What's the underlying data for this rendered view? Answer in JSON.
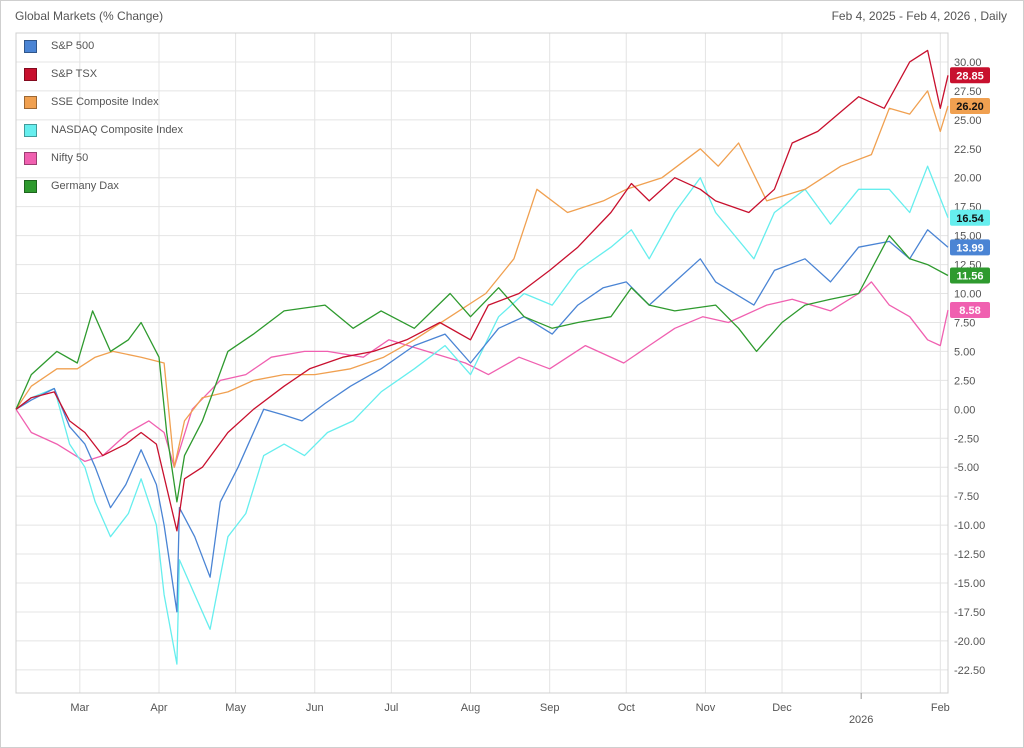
{
  "header": {
    "title": "Global Markets (% Change)",
    "date_range": "Feb 4, 2025 - Feb 4, 2026 , Daily"
  },
  "chart_data": {
    "type": "line",
    "title": "Global Markets (% Change)",
    "x_start": "2025-02-04",
    "x_end": "2026-02-04",
    "x_tick_labels": [
      {
        "label": "Mar",
        "date": "2025-03-01"
      },
      {
        "label": "Apr",
        "date": "2025-04-01"
      },
      {
        "label": "May",
        "date": "2025-05-01"
      },
      {
        "label": "Jun",
        "date": "2025-06-01"
      },
      {
        "label": "Jul",
        "date": "2025-07-01"
      },
      {
        "label": "Aug",
        "date": "2025-08-01"
      },
      {
        "label": "Sep",
        "date": "2025-09-01"
      },
      {
        "label": "Oct",
        "date": "2025-10-01"
      },
      {
        "label": "Nov",
        "date": "2025-11-01"
      },
      {
        "label": "Dec",
        "date": "2025-12-01"
      },
      {
        "label": "2026",
        "date": "2026-01-01"
      },
      {
        "label": "Feb",
        "date": "2026-02-01"
      }
    ],
    "y_ticks": [
      "30.00",
      "27.50",
      "25.00",
      "22.50",
      "20.00",
      "17.50",
      "15.00",
      "12.50",
      "10.00",
      "7.50",
      "5.00",
      "2.50",
      "0.00",
      "-2.50",
      "-5.00",
      "-7.50",
      "-10.00",
      "-12.50",
      "-15.00",
      "-17.50",
      "-20.00",
      "-22.50"
    ],
    "ylim": [
      -24.5,
      32.5
    ],
    "grid": true,
    "legend_position": "top-left",
    "series": [
      {
        "name": "S&P 500",
        "color": "#4a84d4",
        "last_label": "13.99",
        "points": [
          [
            "2025-02-04",
            0
          ],
          [
            "2025-02-10",
            0.8
          ],
          [
            "2025-02-19",
            1.8
          ],
          [
            "2025-02-25",
            -1.5
          ],
          [
            "2025-03-03",
            -3
          ],
          [
            "2025-03-07",
            -5
          ],
          [
            "2025-03-13",
            -8.5
          ],
          [
            "2025-03-19",
            -6.5
          ],
          [
            "2025-03-25",
            -3.5
          ],
          [
            "2025-03-31",
            -6.5
          ],
          [
            "2025-04-03",
            -10
          ],
          [
            "2025-04-08",
            -17.5
          ],
          [
            "2025-04-09",
            -8.5
          ],
          [
            "2025-04-15",
            -11
          ],
          [
            "2025-04-21",
            -14.5
          ],
          [
            "2025-04-25",
            -8
          ],
          [
            "2025-05-02",
            -5
          ],
          [
            "2025-05-12",
            0
          ],
          [
            "2025-05-20",
            -0.5
          ],
          [
            "2025-05-27",
            -1
          ],
          [
            "2025-06-05",
            0.5
          ],
          [
            "2025-06-15",
            2
          ],
          [
            "2025-06-27",
            3.5
          ],
          [
            "2025-07-10",
            5.5
          ],
          [
            "2025-07-22",
            6.5
          ],
          [
            "2025-08-01",
            4
          ],
          [
            "2025-08-12",
            7
          ],
          [
            "2025-08-22",
            8
          ],
          [
            "2025-09-02",
            6.5
          ],
          [
            "2025-09-12",
            9
          ],
          [
            "2025-09-22",
            10.5
          ],
          [
            "2025-10-01",
            11
          ],
          [
            "2025-10-10",
            9
          ],
          [
            "2025-10-20",
            11
          ],
          [
            "2025-10-30",
            13
          ],
          [
            "2025-11-05",
            11
          ],
          [
            "2025-11-20",
            9
          ],
          [
            "2025-11-28",
            12
          ],
          [
            "2025-12-10",
            13
          ],
          [
            "2025-12-20",
            11
          ],
          [
            "2025-12-31",
            14
          ],
          [
            "2026-01-12",
            14.5
          ],
          [
            "2026-01-20",
            13
          ],
          [
            "2026-01-27",
            15.5
          ],
          [
            "2026-02-04",
            13.99
          ]
        ]
      },
      {
        "name": "S&P TSX",
        "color": "#c8102e",
        "last_label": "28.85",
        "points": [
          [
            "2025-02-04",
            0
          ],
          [
            "2025-02-10",
            1
          ],
          [
            "2025-02-19",
            1.5
          ],
          [
            "2025-02-25",
            -1
          ],
          [
            "2025-03-03",
            -2
          ],
          [
            "2025-03-10",
            -4
          ],
          [
            "2025-03-19",
            -3
          ],
          [
            "2025-03-25",
            -2
          ],
          [
            "2025-03-31",
            -3
          ],
          [
            "2025-04-08",
            -10.5
          ],
          [
            "2025-04-11",
            -6
          ],
          [
            "2025-04-18",
            -5
          ],
          [
            "2025-04-28",
            -2
          ],
          [
            "2025-05-08",
            0
          ],
          [
            "2025-05-20",
            2
          ],
          [
            "2025-05-30",
            3.5
          ],
          [
            "2025-06-12",
            4.5
          ],
          [
            "2025-06-24",
            5
          ],
          [
            "2025-07-07",
            6
          ],
          [
            "2025-07-20",
            7.5
          ],
          [
            "2025-08-01",
            6
          ],
          [
            "2025-08-08",
            9
          ],
          [
            "2025-08-20",
            10
          ],
          [
            "2025-09-01",
            12
          ],
          [
            "2025-09-12",
            14
          ],
          [
            "2025-09-25",
            17
          ],
          [
            "2025-10-03",
            19.5
          ],
          [
            "2025-10-10",
            18
          ],
          [
            "2025-10-20",
            20
          ],
          [
            "2025-10-30",
            19
          ],
          [
            "2025-11-05",
            18
          ],
          [
            "2025-11-18",
            17
          ],
          [
            "2025-11-28",
            19
          ],
          [
            "2025-12-05",
            23
          ],
          [
            "2025-12-15",
            24
          ],
          [
            "2025-12-31",
            27
          ],
          [
            "2026-01-10",
            26
          ],
          [
            "2026-01-20",
            30
          ],
          [
            "2026-01-27",
            31
          ],
          [
            "2026-02-01",
            26
          ],
          [
            "2026-02-04",
            28.85
          ]
        ]
      },
      {
        "name": "SSE Composite Index",
        "color": "#f0a050",
        "last_label": "26.20",
        "points": [
          [
            "2025-02-04",
            0
          ],
          [
            "2025-02-10",
            2
          ],
          [
            "2025-02-20",
            3.5
          ],
          [
            "2025-02-28",
            3.5
          ],
          [
            "2025-03-07",
            4.5
          ],
          [
            "2025-03-14",
            5
          ],
          [
            "2025-03-25",
            4.5
          ],
          [
            "2025-04-03",
            4
          ],
          [
            "2025-04-07",
            -5
          ],
          [
            "2025-04-11",
            -1
          ],
          [
            "2025-04-18",
            1
          ],
          [
            "2025-04-28",
            1.5
          ],
          [
            "2025-05-08",
            2.5
          ],
          [
            "2025-05-20",
            3
          ],
          [
            "2025-06-01",
            3
          ],
          [
            "2025-06-15",
            3.5
          ],
          [
            "2025-06-28",
            4.5
          ],
          [
            "2025-07-10",
            6
          ],
          [
            "2025-07-24",
            8
          ],
          [
            "2025-08-07",
            10
          ],
          [
            "2025-08-18",
            13
          ],
          [
            "2025-08-27",
            19
          ],
          [
            "2025-09-08",
            17
          ],
          [
            "2025-09-22",
            18
          ],
          [
            "2025-10-01",
            19
          ],
          [
            "2025-10-15",
            20
          ],
          [
            "2025-10-30",
            22.5
          ],
          [
            "2025-11-06",
            21
          ],
          [
            "2025-11-14",
            23
          ],
          [
            "2025-11-25",
            18
          ],
          [
            "2025-12-10",
            19
          ],
          [
            "2025-12-24",
            21
          ],
          [
            "2026-01-05",
            22
          ],
          [
            "2026-01-12",
            26
          ],
          [
            "2026-01-20",
            25.5
          ],
          [
            "2026-01-27",
            27.5
          ],
          [
            "2026-02-01",
            24
          ],
          [
            "2026-02-04",
            26.2
          ]
        ]
      },
      {
        "name": "NASDAQ Composite Index",
        "color": "#66eeee",
        "last_label": "16.54",
        "points": [
          [
            "2025-02-04",
            0
          ],
          [
            "2025-02-10",
            1
          ],
          [
            "2025-02-19",
            1.8
          ],
          [
            "2025-02-25",
            -3
          ],
          [
            "2025-03-03",
            -5
          ],
          [
            "2025-03-07",
            -8
          ],
          [
            "2025-03-13",
            -11
          ],
          [
            "2025-03-20",
            -9
          ],
          [
            "2025-03-25",
            -6
          ],
          [
            "2025-03-31",
            -10
          ],
          [
            "2025-04-03",
            -16
          ],
          [
            "2025-04-08",
            -22
          ],
          [
            "2025-04-09",
            -13
          ],
          [
            "2025-04-15",
            -16
          ],
          [
            "2025-04-21",
            -19
          ],
          [
            "2025-04-28",
            -11
          ],
          [
            "2025-05-05",
            -9
          ],
          [
            "2025-05-12",
            -4
          ],
          [
            "2025-05-20",
            -3
          ],
          [
            "2025-05-28",
            -4
          ],
          [
            "2025-06-06",
            -2
          ],
          [
            "2025-06-16",
            -1
          ],
          [
            "2025-06-27",
            1.5
          ],
          [
            "2025-07-10",
            3.5
          ],
          [
            "2025-07-22",
            5.5
          ],
          [
            "2025-08-01",
            3
          ],
          [
            "2025-08-12",
            8
          ],
          [
            "2025-08-22",
            10
          ],
          [
            "2025-09-02",
            9
          ],
          [
            "2025-09-12",
            12
          ],
          [
            "2025-09-25",
            14
          ],
          [
            "2025-10-03",
            15.5
          ],
          [
            "2025-10-10",
            13
          ],
          [
            "2025-10-20",
            17
          ],
          [
            "2025-10-30",
            20
          ],
          [
            "2025-11-05",
            17
          ],
          [
            "2025-11-20",
            13
          ],
          [
            "2025-11-28",
            17
          ],
          [
            "2025-12-10",
            19
          ],
          [
            "2025-12-20",
            16
          ],
          [
            "2025-12-31",
            19
          ],
          [
            "2026-01-12",
            19
          ],
          [
            "2026-01-20",
            17
          ],
          [
            "2026-01-27",
            21
          ],
          [
            "2026-02-04",
            16.54
          ]
        ]
      },
      {
        "name": "Nifty 50",
        "color": "#f060b0",
        "last_label": "8.58",
        "points": [
          [
            "2025-02-04",
            0
          ],
          [
            "2025-02-10",
            -2
          ],
          [
            "2025-02-20",
            -3
          ],
          [
            "2025-03-03",
            -4.5
          ],
          [
            "2025-03-10",
            -4
          ],
          [
            "2025-03-20",
            -2
          ],
          [
            "2025-03-28",
            -1
          ],
          [
            "2025-04-03",
            -2
          ],
          [
            "2025-04-07",
            -5
          ],
          [
            "2025-04-14",
            0
          ],
          [
            "2025-04-25",
            2.5
          ],
          [
            "2025-05-05",
            3
          ],
          [
            "2025-05-15",
            4.5
          ],
          [
            "2025-05-28",
            5
          ],
          [
            "2025-06-06",
            5
          ],
          [
            "2025-06-20",
            4.5
          ],
          [
            "2025-06-30",
            6
          ],
          [
            "2025-07-15",
            5
          ],
          [
            "2025-07-30",
            4
          ],
          [
            "2025-08-08",
            3
          ],
          [
            "2025-08-20",
            4.5
          ],
          [
            "2025-09-01",
            3.5
          ],
          [
            "2025-09-15",
            5.5
          ],
          [
            "2025-09-30",
            4
          ],
          [
            "2025-10-10",
            5.5
          ],
          [
            "2025-10-20",
            7
          ],
          [
            "2025-10-31",
            8
          ],
          [
            "2025-11-10",
            7.5
          ],
          [
            "2025-11-25",
            9
          ],
          [
            "2025-12-05",
            9.5
          ],
          [
            "2025-12-20",
            8.5
          ],
          [
            "2025-12-31",
            10
          ],
          [
            "2026-01-05",
            11
          ],
          [
            "2026-01-12",
            9
          ],
          [
            "2026-01-20",
            8
          ],
          [
            "2026-01-27",
            6
          ],
          [
            "2026-02-01",
            5.5
          ],
          [
            "2026-02-04",
            8.58
          ]
        ]
      },
      {
        "name": "Germany Dax",
        "color": "#2e9a2e",
        "last_label": "11.56",
        "points": [
          [
            "2025-02-04",
            0
          ],
          [
            "2025-02-10",
            3
          ],
          [
            "2025-02-20",
            5
          ],
          [
            "2025-02-28",
            4
          ],
          [
            "2025-03-06",
            8.5
          ],
          [
            "2025-03-13",
            5
          ],
          [
            "2025-03-20",
            6
          ],
          [
            "2025-03-25",
            7.5
          ],
          [
            "2025-04-01",
            4.5
          ],
          [
            "2025-04-04",
            -2
          ],
          [
            "2025-04-08",
            -8
          ],
          [
            "2025-04-11",
            -4
          ],
          [
            "2025-04-18",
            -1
          ],
          [
            "2025-04-28",
            5
          ],
          [
            "2025-05-08",
            6.5
          ],
          [
            "2025-05-20",
            8.5
          ],
          [
            "2025-06-05",
            9
          ],
          [
            "2025-06-16",
            7
          ],
          [
            "2025-06-27",
            8.5
          ],
          [
            "2025-07-10",
            7
          ],
          [
            "2025-07-24",
            10
          ],
          [
            "2025-08-01",
            8
          ],
          [
            "2025-08-12",
            10.5
          ],
          [
            "2025-08-22",
            8
          ],
          [
            "2025-09-02",
            7
          ],
          [
            "2025-09-12",
            7.5
          ],
          [
            "2025-09-25",
            8
          ],
          [
            "2025-10-03",
            10.5
          ],
          [
            "2025-10-10",
            9
          ],
          [
            "2025-10-20",
            8.5
          ],
          [
            "2025-11-05",
            9
          ],
          [
            "2025-11-14",
            7
          ],
          [
            "2025-11-21",
            5
          ],
          [
            "2025-12-01",
            7.5
          ],
          [
            "2025-12-10",
            9
          ],
          [
            "2025-12-20",
            9.5
          ],
          [
            "2025-12-31",
            10
          ],
          [
            "2026-01-12",
            15
          ],
          [
            "2026-01-20",
            13
          ],
          [
            "2026-01-27",
            12.5
          ],
          [
            "2026-02-04",
            11.56
          ]
        ]
      }
    ]
  }
}
